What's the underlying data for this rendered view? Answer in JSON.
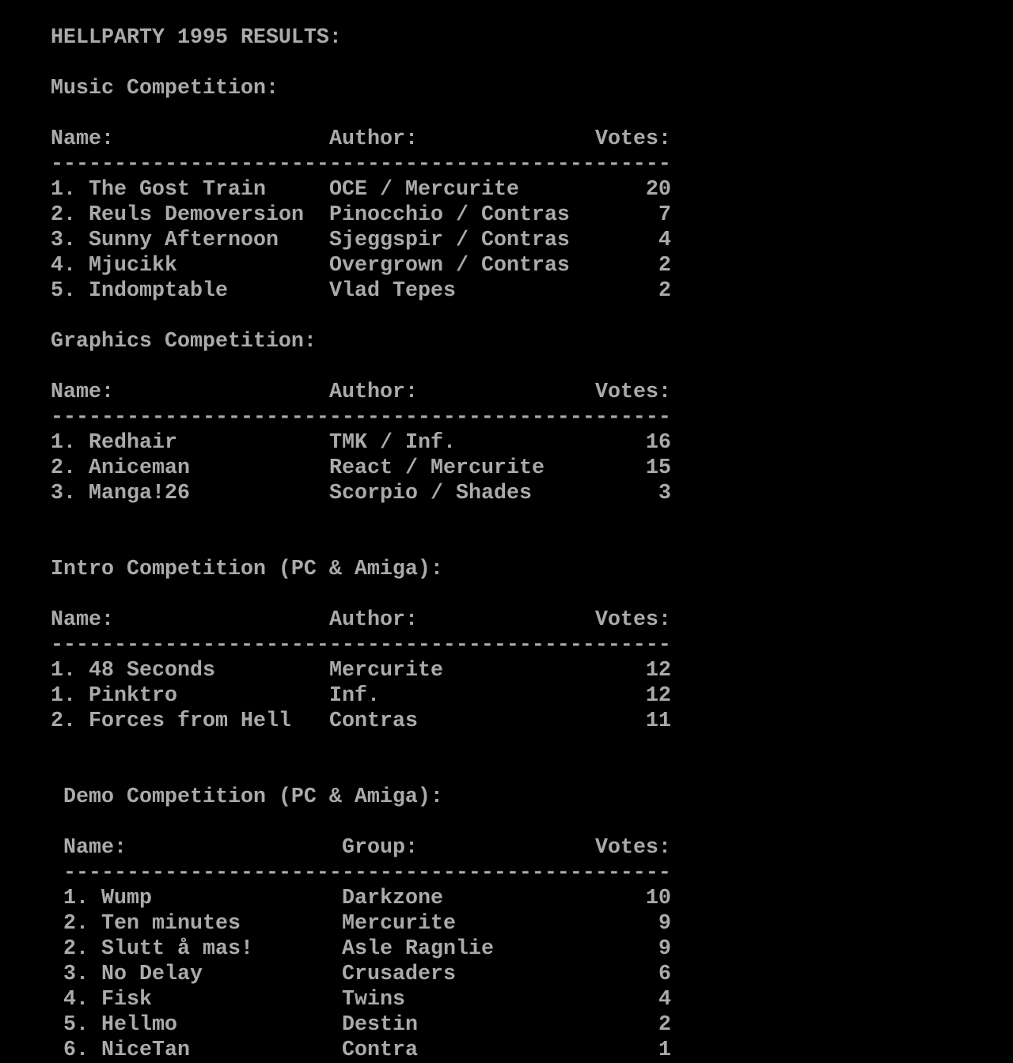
{
  "title": "HELLPARTY 1995 RESULTS:",
  "text_color": "#aaaaaa",
  "background_color": "#000000",
  "sections": [
    {
      "title": "Music Competition:",
      "headers": {
        "name": "Name:",
        "author": "Author:",
        "votes": "Votes:"
      },
      "entries": [
        {
          "rank": "1.",
          "name": "The Gost Train",
          "author": "OCE / Mercurite",
          "votes": "20"
        },
        {
          "rank": "2.",
          "name": "Reuls Demoversion",
          "author": "Pinocchio / Contras",
          "votes": "7"
        },
        {
          "rank": "3.",
          "name": "Sunny Afternoon",
          "author": "Sjeggspir / Contras",
          "votes": "4"
        },
        {
          "rank": "4.",
          "name": "Mjucikk",
          "author": "Overgrown / Contras",
          "votes": "2"
        },
        {
          "rank": "5.",
          "name": "Indomptable",
          "author": "Vlad Tepes",
          "votes": "2"
        }
      ]
    },
    {
      "title": "Graphics Competition:",
      "headers": {
        "name": "Name:",
        "author": "Author:",
        "votes": "Votes:"
      },
      "entries": [
        {
          "rank": "1.",
          "name": "Redhair",
          "author": "TMK / Inf.",
          "votes": "16"
        },
        {
          "rank": "2.",
          "name": "Aniceman",
          "author": "React / Mercurite",
          "votes": "15"
        },
        {
          "rank": "3.",
          "name": "Manga!26",
          "author": "Scorpio / Shades",
          "votes": "3"
        }
      ]
    },
    {
      "title": "Intro Competition (PC & Amiga):",
      "headers": {
        "name": "Name:",
        "author": "Author:",
        "votes": "Votes:"
      },
      "entries": [
        {
          "rank": "1.",
          "name": "48 Seconds",
          "author": "Mercurite",
          "votes": "12"
        },
        {
          "rank": "1.",
          "name": "Pinktro",
          "author": "Inf.",
          "votes": "12"
        },
        {
          "rank": "2.",
          "name": "Forces from Hell",
          "author": "Contras",
          "votes": "11"
        }
      ]
    },
    {
      "title": "Demo Competition (PC & Amiga):",
      "headers": {
        "name": "Name:",
        "author": "Group:",
        "votes": "Votes:"
      },
      "entries": [
        {
          "rank": "1.",
          "name": "Wump",
          "author": "Darkzone",
          "votes": "10"
        },
        {
          "rank": "2.",
          "name": "Ten minutes",
          "author": "Mercurite",
          "votes": "9"
        },
        {
          "rank": "2.",
          "name": "Slutt å mas!",
          "author": "Asle Ragnlie",
          "votes": "9"
        },
        {
          "rank": "3.",
          "name": "No Delay",
          "author": "Crusaders",
          "votes": "6"
        },
        {
          "rank": "4.",
          "name": "Fisk",
          "author": "Twins",
          "votes": "4"
        },
        {
          "rank": "5.",
          "name": "Hellmo",
          "author": "Destin",
          "votes": "2"
        },
        {
          "rank": "6.",
          "name": "NiceTan",
          "author": "Contra",
          "votes": "1"
        }
      ]
    }
  ]
}
